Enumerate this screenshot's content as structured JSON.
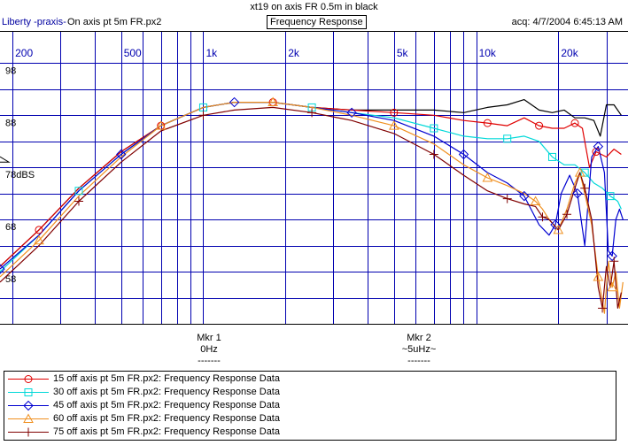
{
  "header": {
    "title": "xt19 on axis FR 0.5m in black",
    "app_name": "Liberty -praxis-",
    "file_name": "On axis pt 5m FR.px2",
    "mode": "Frequency Response",
    "acquired": "acq: 4/7/2004 6:45:13 AM"
  },
  "markers": [
    {
      "label": "Mkr 1",
      "value": "0Hz",
      "rule": "-------"
    },
    {
      "label": "Mkr 2",
      "value": "~5uHz~",
      "rule": "-------"
    }
  ],
  "chart_data": {
    "type": "line",
    "title": "Frequency Response",
    "x_scale": "log",
    "xlim": [
      180,
      36000
    ],
    "ylim": [
      48,
      104
    ],
    "x_tick_labels": [
      {
        "f": 200,
        "label": "200"
      },
      {
        "f": 500,
        "label": "500"
      },
      {
        "f": 1000,
        "label": "1k"
      },
      {
        "f": 2000,
        "label": "2k"
      },
      {
        "f": 5000,
        "label": "5k"
      },
      {
        "f": 10000,
        "label": "10k"
      },
      {
        "f": 20000,
        "label": "20k"
      }
    ],
    "x_gridlines": [
      200,
      300,
      400,
      500,
      600,
      700,
      800,
      900,
      1000,
      2000,
      3000,
      4000,
      5000,
      6000,
      7000,
      8000,
      9000,
      10000,
      20000,
      30000
    ],
    "y_tick_labels": [
      {
        "v": 98,
        "label": "98"
      },
      {
        "v": 88,
        "label": "88"
      },
      {
        "v": 78,
        "label": "78dBS"
      },
      {
        "v": 68,
        "label": "68"
      },
      {
        "v": 58,
        "label": "58"
      }
    ],
    "y_gridlines": [
      98,
      93,
      88,
      83,
      78,
      73,
      68,
      63,
      58,
      53
    ],
    "series": [
      {
        "name": "On axis (0.5m)",
        "color": "#000000",
        "marker": "none",
        "legend": "",
        "x": [
          180,
          250,
          350,
          500,
          700,
          1000,
          1300,
          1800,
          2500,
          3500,
          5000,
          7000,
          9000,
          11000,
          13000,
          15000,
          17000,
          19000,
          21000,
          23000,
          25000,
          27000,
          28500,
          30000,
          32000,
          34000
        ],
        "y": [
          59,
          66,
          74,
          81,
          86,
          89.5,
          90.5,
          90.5,
          89.5,
          89,
          89,
          89,
          88.5,
          89.5,
          90,
          91,
          89,
          88.5,
          89,
          87.5,
          87.5,
          87,
          84,
          90,
          90,
          88
        ]
      },
      {
        "name": "15 off axis",
        "color": "#e00000",
        "marker": "circle",
        "legend": "15 off axis pt 5m FR.px2:  Frequency Response Data",
        "x": [
          180,
          250,
          350,
          500,
          700,
          1000,
          1300,
          1800,
          2500,
          3500,
          5000,
          7000,
          9000,
          11000,
          13000,
          15000,
          17000,
          19000,
          21000,
          23000,
          24500,
          26000,
          27500,
          30000,
          32000,
          34000
        ],
        "y": [
          59,
          66,
          74,
          81,
          86,
          89.5,
          90.5,
          90.5,
          89.5,
          89,
          88.5,
          88,
          87,
          86.5,
          86,
          87.5,
          86,
          85.5,
          85.5,
          86.5,
          85.5,
          78,
          81,
          80,
          81.5,
          80.5
        ]
      },
      {
        "name": "30 off axis",
        "color": "#00d8d8",
        "marker": "square",
        "legend": "30 off axis pt 5m FR.px2:  Frequency Response Data",
        "x": [
          180,
          250,
          350,
          500,
          700,
          1000,
          1300,
          1800,
          2500,
          3500,
          5000,
          7000,
          9000,
          11000,
          13000,
          15000,
          17000,
          19000,
          21000,
          23000,
          25000,
          27000,
          29000,
          31000,
          33000,
          34000
        ],
        "y": [
          58,
          65,
          73.5,
          80.5,
          86,
          89.5,
          90.5,
          90.5,
          89.5,
          88.5,
          87.5,
          85.5,
          84,
          83.5,
          83.5,
          84,
          83,
          80,
          78.5,
          78.5,
          77,
          75,
          74,
          72.5,
          71.5,
          70
        ]
      },
      {
        "name": "45 off axis",
        "color": "#0000d0",
        "marker": "diamond",
        "legend": "45 off axis pt 5m FR.px2:  Frequency Response Data",
        "x": [
          180,
          250,
          350,
          500,
          700,
          1000,
          1300,
          1800,
          2500,
          3500,
          5000,
          7000,
          9000,
          11000,
          13000,
          15000,
          17000,
          18500,
          19500,
          20500,
          22000,
          23500,
          25000,
          26500,
          28000,
          29500,
          30500,
          31500,
          32500,
          33500,
          34500
        ],
        "y": [
          58.5,
          65,
          73.5,
          80.5,
          86,
          89.5,
          90.5,
          90.5,
          89.5,
          88.5,
          87,
          84,
          80.5,
          77,
          75,
          72.5,
          67,
          65,
          67,
          73,
          76.5,
          73,
          63,
          80,
          82,
          77,
          62,
          61,
          68,
          70,
          68
        ]
      },
      {
        "name": "60 off axis",
        "color": "#f09020",
        "marker": "triangle",
        "legend": "60 off axis pt 5m FR.px2:  Frequency Response Data",
        "x": [
          180,
          250,
          350,
          500,
          700,
          1000,
          1300,
          1800,
          2500,
          3500,
          5000,
          7000,
          9000,
          11000,
          13000,
          15000,
          16500,
          17500,
          18500,
          20000,
          21500,
          23000,
          24000,
          25000,
          26500,
          28000,
          29500,
          30500,
          31500,
          32500,
          33500,
          34500
        ],
        "y": [
          57,
          64,
          72.5,
          80,
          86,
          89.5,
          90.5,
          90.5,
          89.5,
          88,
          86,
          82.5,
          78.5,
          76,
          74.5,
          73,
          71.5,
          70,
          68,
          66,
          70,
          75,
          77,
          73,
          67,
          57,
          50,
          60,
          55,
          58,
          51,
          56
        ]
      },
      {
        "name": "75 off axis",
        "color": "#800000",
        "marker": "plus",
        "legend": "75 off axis pt 5m FR.px2:  Frequency Response Data",
        "x": [
          180,
          250,
          350,
          500,
          700,
          1000,
          1300,
          1800,
          2500,
          3500,
          5000,
          7000,
          9000,
          11000,
          13000,
          15000,
          16500,
          17500,
          18500,
          20000,
          21500,
          23000,
          24000,
          25000,
          26500,
          28000,
          29000,
          30000,
          31000,
          32000,
          33000,
          34000
        ],
        "y": [
          56,
          63,
          71.5,
          79,
          85,
          88,
          89,
          89.5,
          88.5,
          87,
          84.5,
          80.5,
          76.5,
          73.5,
          72,
          71,
          70.5,
          68.5,
          68,
          66,
          69,
          74,
          77,
          74,
          68,
          55,
          51,
          59,
          55,
          60,
          51,
          54
        ]
      }
    ]
  }
}
